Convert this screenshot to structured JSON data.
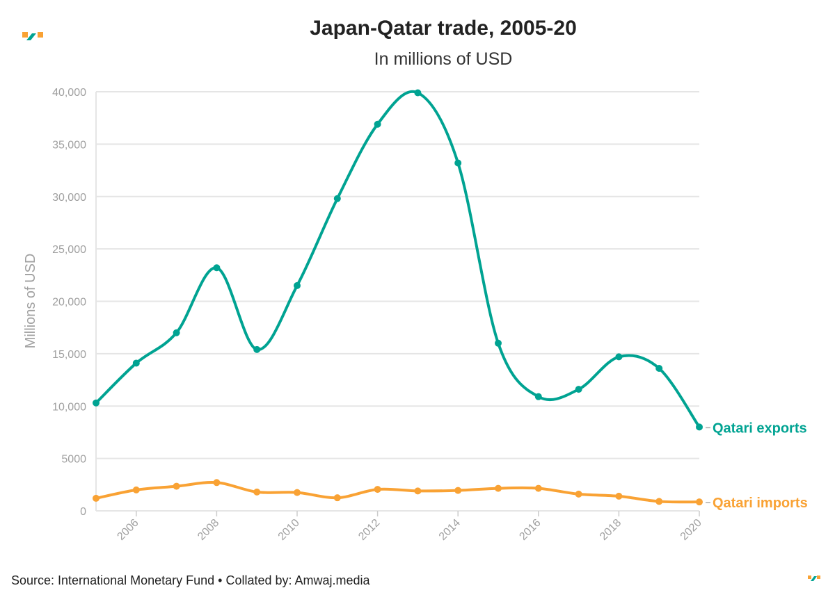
{
  "colors": {
    "exports": "#00a392",
    "imports": "#f9a234",
    "logo_green": "#00a392",
    "logo_orange": "#f9a234"
  },
  "logo": {
    "icon": "amwaj-logo-icon"
  },
  "chart_data": {
    "type": "line",
    "title": "Japan-Qatar trade, 2005-20",
    "subtitle": "In millions of USD",
    "xlabel": "",
    "ylabel": "Millions of USD",
    "x": [
      2005,
      2006,
      2007,
      2008,
      2009,
      2010,
      2011,
      2012,
      2013,
      2014,
      2015,
      2016,
      2017,
      2018,
      2019,
      2020
    ],
    "xlim": [
      2005,
      2020
    ],
    "ylim": [
      0,
      40000
    ],
    "x_ticks": [
      "2006",
      "2008",
      "2010",
      "2012",
      "2014",
      "2016",
      "2018",
      "2020"
    ],
    "y_ticks": [
      {
        "value": 0,
        "label": "0"
      },
      {
        "value": 5000,
        "label": "5000"
      },
      {
        "value": 10000,
        "label": "10,000"
      },
      {
        "value": 15000,
        "label": "15,000"
      },
      {
        "value": 20000,
        "label": "20,000"
      },
      {
        "value": 25000,
        "label": "25,000"
      },
      {
        "value": 30000,
        "label": "30,000"
      },
      {
        "value": 35000,
        "label": "35,000"
      },
      {
        "value": 40000,
        "label": "40,000"
      }
    ],
    "grid": true,
    "series": [
      {
        "name": "Qatari exports",
        "key": "exports",
        "values": [
          10300,
          14100,
          17000,
          23200,
          15400,
          21500,
          29800,
          36900,
          39900,
          33200,
          16000,
          10900,
          11600,
          14700,
          13600,
          8000
        ]
      },
      {
        "name": "Qatari imports",
        "key": "imports",
        "values": [
          1200,
          2000,
          2350,
          2700,
          1800,
          1750,
          1250,
          2050,
          1900,
          1950,
          2150,
          2150,
          1600,
          1400,
          900,
          850
        ]
      }
    ]
  },
  "source": "Source: International Monetary Fund • Collated by: Amwaj.media"
}
